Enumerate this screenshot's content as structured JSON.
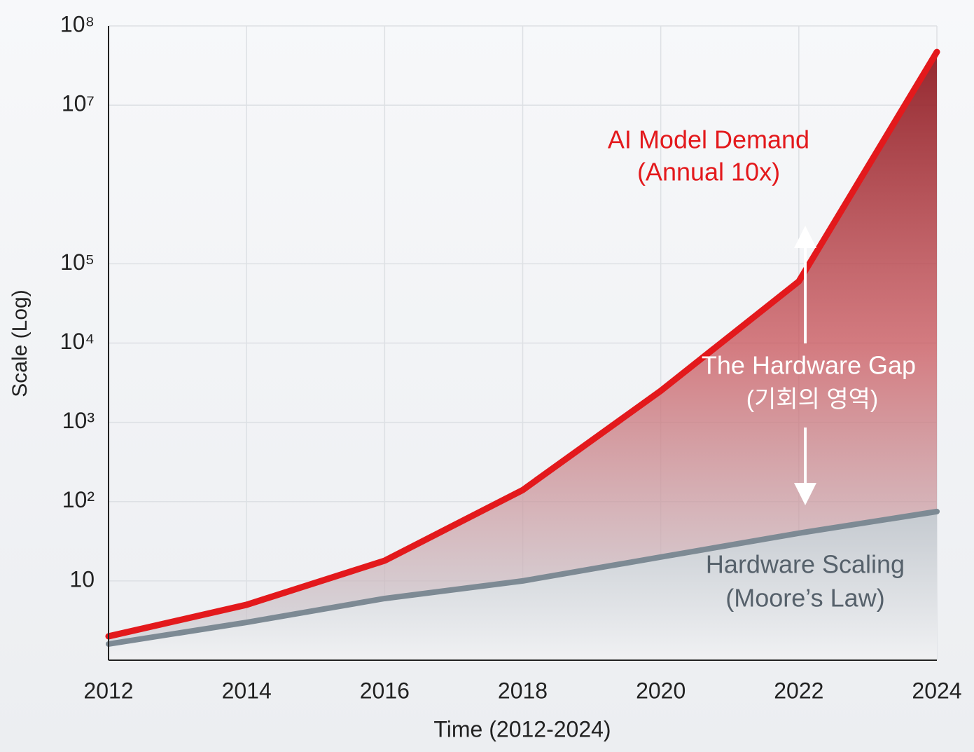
{
  "chart_data": {
    "type": "line",
    "x_label": "Time (2012-2024)",
    "y_label": "Scale (Log)",
    "x": [
      2012,
      2014,
      2016,
      2018,
      2020,
      2022,
      2024
    ],
    "series": [
      {
        "name": "AI Model Demand",
        "color": "#e3191c",
        "values": [
          2,
          5,
          18,
          140,
          2500,
          60000,
          47000000
        ]
      },
      {
        "name": "Hardware Scaling",
        "color": "#7d8a94",
        "values": [
          1.6,
          3,
          6,
          10,
          20,
          40,
          75
        ]
      }
    ],
    "annotations": [
      "(Annual 10x)",
      "The Hardware Gap",
      "(기회의 영역)",
      "(Moore’s Law)"
    ],
    "xlim": [
      2012,
      2024
    ],
    "xticks": [
      2012,
      2014,
      2016,
      2018,
      2020,
      2022,
      2024
    ],
    "ylim": [
      1,
      100000000
    ],
    "yticks": [
      {
        "value": 10,
        "label": "10"
      },
      {
        "value": 100,
        "label": "10²"
      },
      {
        "value": 1000,
        "label": "10³"
      },
      {
        "value": 10000,
        "label": "10⁴"
      },
      {
        "value": 100000,
        "label": "10⁵"
      },
      {
        "value": 10000000,
        "label": "10⁷"
      },
      {
        "value": 100000000,
        "label": "10⁸"
      }
    ],
    "log_scale": true,
    "grid": true
  }
}
